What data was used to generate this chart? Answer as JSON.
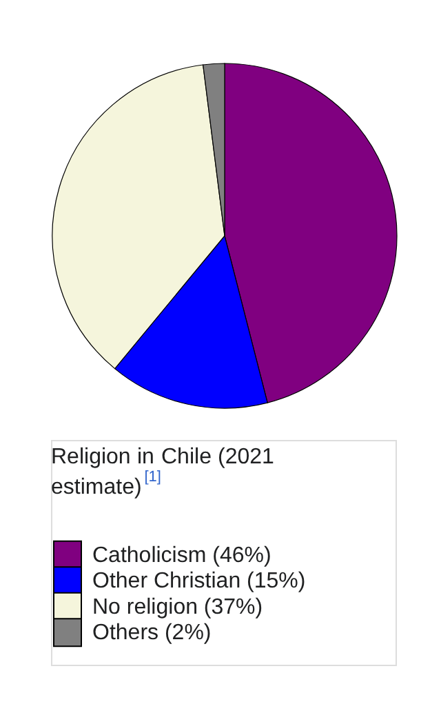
{
  "chart_data": {
    "type": "pie",
    "title": "Religion in Chile (2021 estimate)$^{[1]}$",
    "categories": [
      "Catholicism (46%)",
      "Other Christian (15%)",
      "No religion (37%)",
      "Others (2%)"
    ],
    "values": [
      46,
      15,
      37,
      2
    ],
    "colors": [
      "#800080",
      "#0000ff",
      "#f5f5dc",
      "#808080"
    ],
    "legend": "bottom"
  }
}
